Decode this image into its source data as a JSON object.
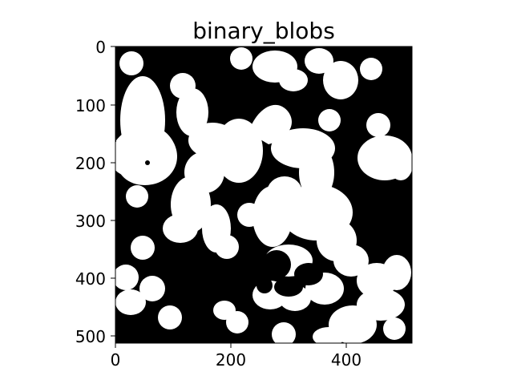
{
  "title": "binary_blobs",
  "image": {
    "width": 512,
    "height": 512,
    "content": "binary blobs (black background, white blobs)",
    "colormap": "gray",
    "colors": {
      "foreground": "#ffffff",
      "background": "#000000"
    }
  },
  "axes": {
    "x": {
      "ticks": [
        0,
        200,
        400
      ],
      "tick_labels": [
        "0",
        "200",
        "400"
      ],
      "range": [
        0,
        512
      ]
    },
    "y": {
      "ticks": [
        0,
        100,
        200,
        300,
        400,
        500
      ],
      "tick_labels": [
        "0",
        "100",
        "200",
        "300",
        "400",
        "500"
      ],
      "range": [
        0,
        512
      ]
    }
  }
}
